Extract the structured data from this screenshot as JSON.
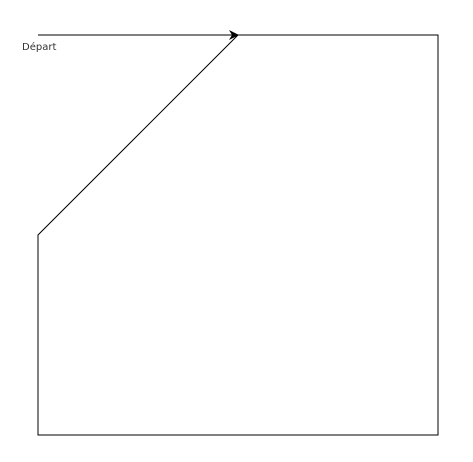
{
  "diagram": {
    "start_label": "Départ",
    "line_color": "#000000",
    "label_color": "#333333"
  }
}
